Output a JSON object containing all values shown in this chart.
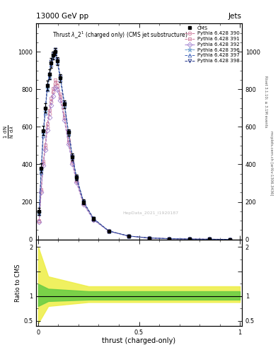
{
  "title_top": "13000 GeV pp",
  "title_right": "Jets",
  "plot_title": "Thrust $\\lambda$_2$^1$ (charged only) (CMS jet substructure)",
  "xlabel": "thrust (charged-only)",
  "ylabel_line1": "1",
  "ylabel_ratio": "Ratio to CMS",
  "right_label_top": "Rivet 3.1.10; ≥ 3.1M events",
  "right_label_bot": "mcplots.cern.ch [arXiv:1306.3436]",
  "cms_label": "CMS",
  "pythia_labels": [
    "Pythia 6.428 390",
    "Pythia 6.428 391",
    "Pythia 6.428 392",
    "Pythia 6.428 396",
    "Pythia 6.428 397",
    "Pythia 6.428 398"
  ],
  "watermark": "HepData_2021_I1920187",
  "bg_color": "#ffffff",
  "ratio_band_inner_color": "#66cc44",
  "ratio_band_outer_color": "#eeee44",
  "x_vals": [
    0.005,
    0.015,
    0.025,
    0.035,
    0.045,
    0.055,
    0.065,
    0.075,
    0.085,
    0.095,
    0.11,
    0.13,
    0.15,
    0.17,
    0.19,
    0.225,
    0.275,
    0.35,
    0.45,
    0.55,
    0.65,
    0.75,
    0.85,
    0.95
  ],
  "cms_y": [
    150,
    380,
    580,
    700,
    820,
    880,
    940,
    980,
    1000,
    950,
    860,
    720,
    570,
    440,
    330,
    200,
    110,
    45,
    18,
    8,
    4,
    2,
    1,
    0.5
  ],
  "cms_err": [
    20,
    25,
    25,
    25,
    25,
    25,
    25,
    20,
    20,
    20,
    20,
    20,
    18,
    18,
    15,
    12,
    8,
    4,
    3,
    2,
    1,
    1,
    0.5,
    0.3
  ],
  "pythia_offsets": [
    [
      0.65,
      0.68,
      0.7,
      0.7,
      0.73,
      0.76,
      0.78,
      0.8,
      0.83,
      0.86,
      0.88,
      0.9,
      0.91,
      0.93,
      0.94,
      0.95,
      0.96,
      0.98,
      0.99,
      1.0,
      1.0,
      1.0,
      1.0,
      1.0
    ],
    [
      0.67,
      0.7,
      0.72,
      0.72,
      0.75,
      0.78,
      0.8,
      0.82,
      0.85,
      0.88,
      0.9,
      0.92,
      0.93,
      0.95,
      0.96,
      0.97,
      0.98,
      0.99,
      1.0,
      1.0,
      1.0,
      1.0,
      1.0,
      1.0
    ],
    [
      0.63,
      0.66,
      0.68,
      0.68,
      0.71,
      0.74,
      0.76,
      0.78,
      0.81,
      0.84,
      0.86,
      0.88,
      0.89,
      0.91,
      0.92,
      0.93,
      0.94,
      0.96,
      0.98,
      1.0,
      1.0,
      1.0,
      1.0,
      1.0
    ],
    [
      0.95,
      0.96,
      0.97,
      0.97,
      0.98,
      0.99,
      1.0,
      1.0,
      1.0,
      1.0,
      1.0,
      1.0,
      1.0,
      1.0,
      1.0,
      1.0,
      1.0,
      1.0,
      1.0,
      1.0,
      1.0,
      1.0,
      1.0,
      1.0
    ],
    [
      0.93,
      0.94,
      0.95,
      0.96,
      0.97,
      0.98,
      0.99,
      0.99,
      0.99,
      0.99,
      0.99,
      0.99,
      0.99,
      0.99,
      0.99,
      0.99,
      0.99,
      0.99,
      0.99,
      0.99,
      0.99,
      0.99,
      0.99,
      0.99
    ],
    [
      0.97,
      0.98,
      0.99,
      0.99,
      1.0,
      1.0,
      1.01,
      1.01,
      1.01,
      1.01,
      1.01,
      1.01,
      1.01,
      1.01,
      1.01,
      1.01,
      1.01,
      1.01,
      1.01,
      1.01,
      1.01,
      1.01,
      1.01,
      1.01
    ]
  ],
  "py_colors": [
    "#cc7799",
    "#cc7799",
    "#9977cc",
    "#6699cc",
    "#4466bb",
    "#223388"
  ],
  "py_markers": [
    "o",
    "s",
    "D",
    "*",
    "^",
    "v"
  ],
  "yticks_main": [
    0,
    200,
    400,
    600,
    800,
    1000
  ],
  "ylim_main": [
    0,
    1150
  ],
  "ylim_ratio": [
    0.4,
    2.15
  ],
  "yticks_ratio": [
    0.5,
    1.0,
    1.5,
    2.0
  ]
}
